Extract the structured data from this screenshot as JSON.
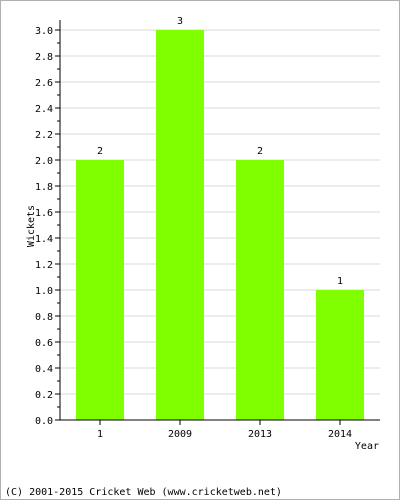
{
  "chart_data": {
    "type": "bar",
    "categories": [
      "1",
      "2009",
      "2013",
      "2014"
    ],
    "values": [
      2,
      3,
      2,
      1
    ],
    "data_labels": [
      "2",
      "3",
      "2",
      "1"
    ],
    "xlabel": "Year",
    "ylabel": "Wickets",
    "ylim": [
      0,
      3.0
    ],
    "yticks": [
      0,
      0.2,
      0.4,
      0.6,
      0.8,
      1.0,
      1.2,
      1.4,
      1.6,
      1.8,
      2.0,
      2.2,
      2.4,
      2.6,
      2.8,
      3.0
    ],
    "ytick_labels": [
      "0.0",
      "0.2",
      "0.4",
      "0.6",
      "0.8",
      "1.0",
      "1.2",
      "1.4",
      "1.6",
      "1.8",
      "2.0",
      "2.2",
      "2.4",
      "2.6",
      "2.8",
      "3.0"
    ],
    "grid": true,
    "bar_color": "#80ff00",
    "grid_color": "#d8d8d8"
  },
  "footer": {
    "copyright": "(C) 2001-2015 Cricket Web (www.cricketweb.net)"
  }
}
